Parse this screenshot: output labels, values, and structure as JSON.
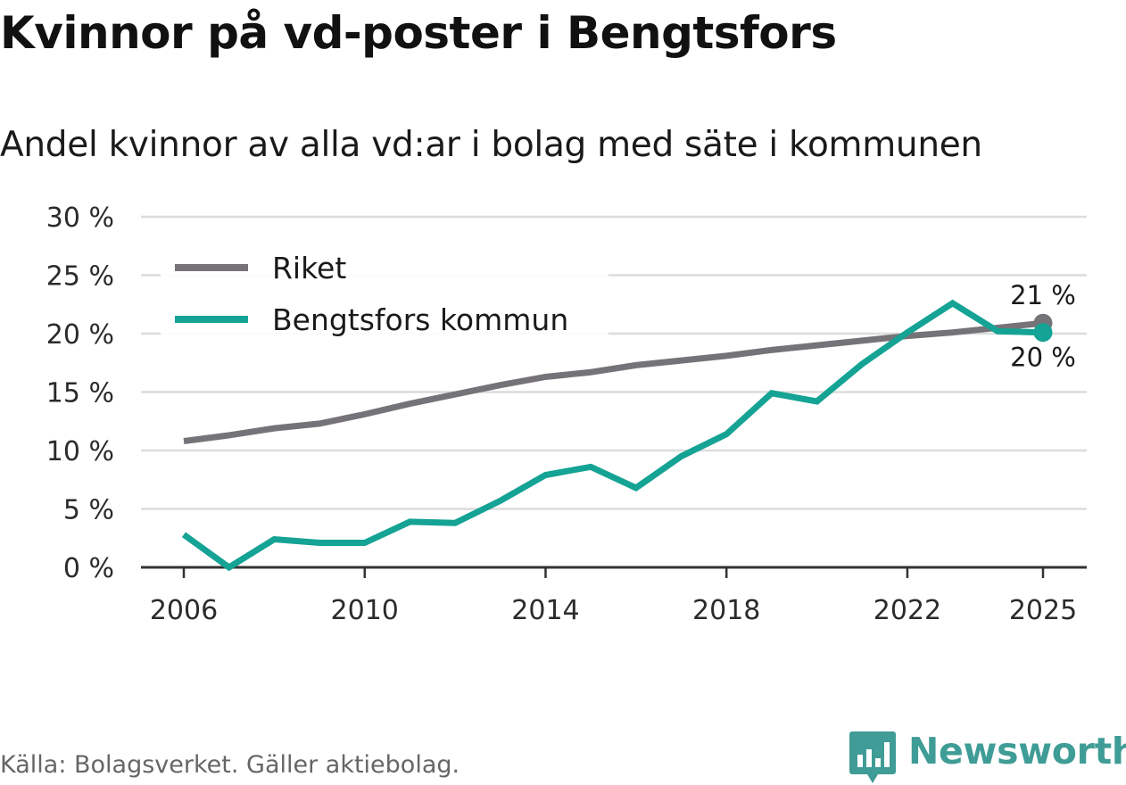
{
  "title": "Kvinnor på vd-poster i Bengtsfors",
  "subtitle": "Andel kvinnor av alla vd:ar i bolag med säte i kommunen",
  "source": "Källa: Bolagsverket. Gäller aktiebolag.",
  "brand": {
    "name": "Newsworthy"
  },
  "colors": {
    "riket": "#757378",
    "bengtsfors": "#14a394",
    "grid": "#dcdcdc",
    "brand": "#3f9c96"
  },
  "chart_data": {
    "type": "line",
    "title": "Kvinnor på vd-poster i Bengtsfors",
    "subtitle": "Andel kvinnor av alla vd:ar i bolag med säte i kommunen",
    "xlabel": "",
    "ylabel": "",
    "x": [
      2006,
      2007,
      2008,
      2009,
      2010,
      2011,
      2012,
      2013,
      2014,
      2015,
      2016,
      2017,
      2018,
      2019,
      2020,
      2021,
      2022,
      2023,
      2024,
      2025
    ],
    "x_ticks": [
      2006,
      2010,
      2014,
      2018,
      2022,
      2025
    ],
    "x_tick_labels": [
      "2006",
      "2010",
      "2014",
      "2018",
      "2022",
      "2025"
    ],
    "xlim": [
      2006,
      2025
    ],
    "ylim": [
      0,
      30
    ],
    "y_ticks": [
      0,
      5,
      10,
      15,
      20,
      25,
      30
    ],
    "y_tick_labels": [
      "0 %",
      "5 %",
      "10 %",
      "15 %",
      "20 %",
      "25 %",
      "30 %"
    ],
    "grid": true,
    "legend_position": "top-left",
    "series": [
      {
        "name": "Riket",
        "color": "#757378",
        "values": [
          10.8,
          11.3,
          11.9,
          12.3,
          13.1,
          14.0,
          14.8,
          15.6,
          16.3,
          16.7,
          17.3,
          17.7,
          18.1,
          18.6,
          19.0,
          19.4,
          19.8,
          20.1,
          20.5,
          20.9
        ],
        "end_label": "21 %"
      },
      {
        "name": "Bengtsfors kommun",
        "color": "#14a394",
        "values": [
          2.8,
          0.0,
          2.4,
          2.1,
          2.1,
          3.9,
          3.8,
          5.7,
          7.9,
          8.6,
          6.8,
          9.5,
          11.4,
          14.9,
          14.2,
          17.4,
          20.1,
          22.6,
          20.2,
          20.1
        ],
        "end_label": "20 %"
      }
    ]
  }
}
